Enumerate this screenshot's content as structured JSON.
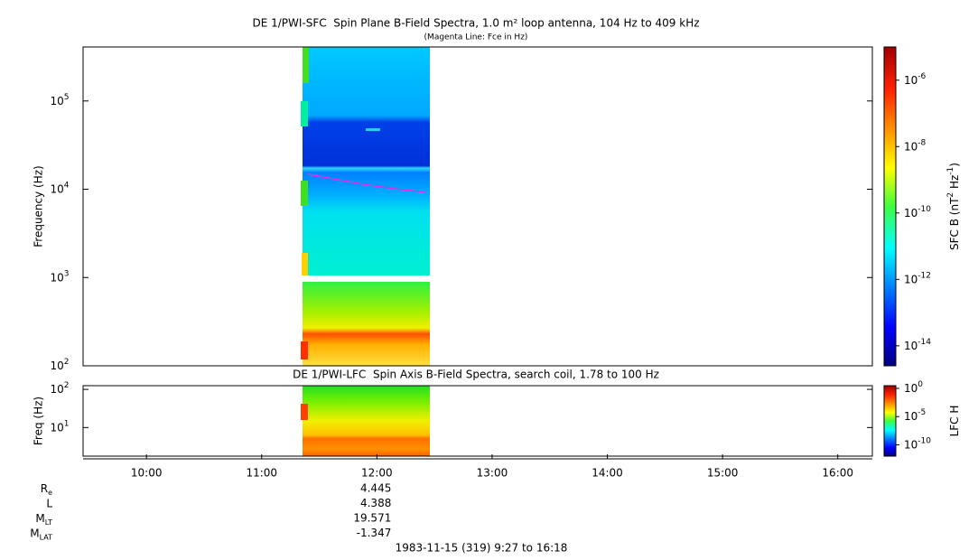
{
  "chart_data": [
    {
      "type": "spectrogram",
      "title": "DE 1/PWI-SFC  Spin Plane B-Field Spectra, 1.0 m² loop antenna, 104 Hz to 409 kHz",
      "subtitle": "(Magenta Line: Fce in Hz)",
      "y_label": "Frequency (Hz)",
      "yscale": "log",
      "ylim": [
        100,
        409000
      ],
      "yticks": [
        {
          "value": 100,
          "label": "10",
          "sup": "2"
        },
        {
          "value": 1000,
          "label": "10",
          "sup": "3"
        },
        {
          "value": 10000,
          "label": "10",
          "sup": "4"
        },
        {
          "value": 100000,
          "label": "10",
          "sup": "5"
        }
      ],
      "colorbar_label": [
        "SFC B (nT",
        "2",
        " Hz",
        "-1",
        ")"
      ],
      "zlim": [
        2.5e-15,
        1e-05
      ],
      "zticks": [
        {
          "value": 1e-14,
          "label": "10",
          "sup": "-14"
        },
        {
          "value": 1e-12,
          "label": "10",
          "sup": "-12"
        },
        {
          "value": 1e-10,
          "label": "10",
          "sup": "-10"
        },
        {
          "value": 1e-08,
          "label": "10",
          "sup": "-8"
        },
        {
          "value": 1e-06,
          "label": "10",
          "sup": "-6"
        }
      ],
      "fce": {
        "color": "#e030e0",
        "x": [
          684,
          700,
          715,
          730,
          745
        ],
        "values": [
          14800,
          12800,
          11200,
          10100,
          9300
        ]
      }
    },
    {
      "type": "spectrogram",
      "title": "DE 1/PWI-LFC  Spin Axis B-Field Spectra, search coil, 1.78 to 100 Hz",
      "y_label": "Freq (Hz)",
      "yscale": "log",
      "ylim": [
        1.78,
        125
      ],
      "yticks": [
        {
          "value": 10,
          "label": "10",
          "sup": "1"
        },
        {
          "value": 100,
          "label": "10",
          "sup": "2"
        }
      ],
      "colorbar_label": [
        "LFC H"
      ],
      "zlim": [
        1e-12,
        3
      ],
      "zticks": [
        {
          "value": 1e-10,
          "label": "10",
          "sup": "-10"
        },
        {
          "value": 1e-05,
          "label": "10",
          "sup": "-5"
        },
        {
          "value": 1,
          "label": "10",
          "sup": "0"
        }
      ]
    }
  ],
  "time_axis": {
    "xlim": [
      567,
      978
    ],
    "xticks": [
      {
        "value": 600,
        "label": "10:00"
      },
      {
        "value": 660,
        "label": "11:00"
      },
      {
        "value": 720,
        "label": "12:00"
      },
      {
        "value": 780,
        "label": "13:00"
      },
      {
        "value": 840,
        "label": "14:00"
      },
      {
        "value": 900,
        "label": "15:00"
      },
      {
        "value": 960,
        "label": "16:00"
      }
    ]
  },
  "ephemeris": [
    {
      "label": "R",
      "sub": "e",
      "value": 4.445
    },
    {
      "label": "L",
      "sub": "",
      "value": 4.388
    },
    {
      "label": "M",
      "sub": "LT",
      "value": 19.571
    },
    {
      "label": "M",
      "sub": "LAT",
      "value": -1.347
    }
  ],
  "footer": "1983-11-15 (319) 9:27 to 16:18"
}
